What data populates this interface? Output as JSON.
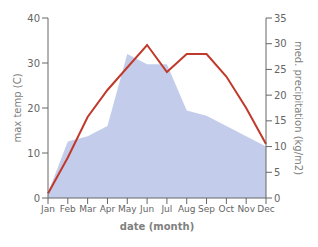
{
  "chart_data": {
    "type": "line",
    "xlabel": "date (month)",
    "ylabel": "max temp (C)",
    "y2label": "med. precipitation (kg/m2)",
    "categories": [
      "Jan",
      "Feb",
      "Mar",
      "Apr",
      "May",
      "Jun",
      "Jul",
      "Aug",
      "Sep",
      "Oct",
      "Nov",
      "Dec"
    ],
    "series": [
      {
        "type": "area",
        "axis": "y2",
        "color": "#b8c4e8",
        "values": [
          1,
          11,
          12,
          14,
          28,
          26,
          26,
          17,
          16,
          14,
          12,
          10
        ]
      },
      {
        "type": "line",
        "color": "#c0392b",
        "values": [
          1,
          9,
          18,
          24,
          29,
          34,
          28,
          32,
          32,
          27,
          20,
          12
        ]
      }
    ],
    "ylim": [
      0,
      40
    ],
    "yticks": [
      0,
      10,
      20,
      30,
      40
    ],
    "y2lim": [
      0,
      35
    ],
    "y2ticks": [
      0,
      5,
      10,
      15,
      20,
      25,
      30,
      35
    ],
    "grid": false
  }
}
